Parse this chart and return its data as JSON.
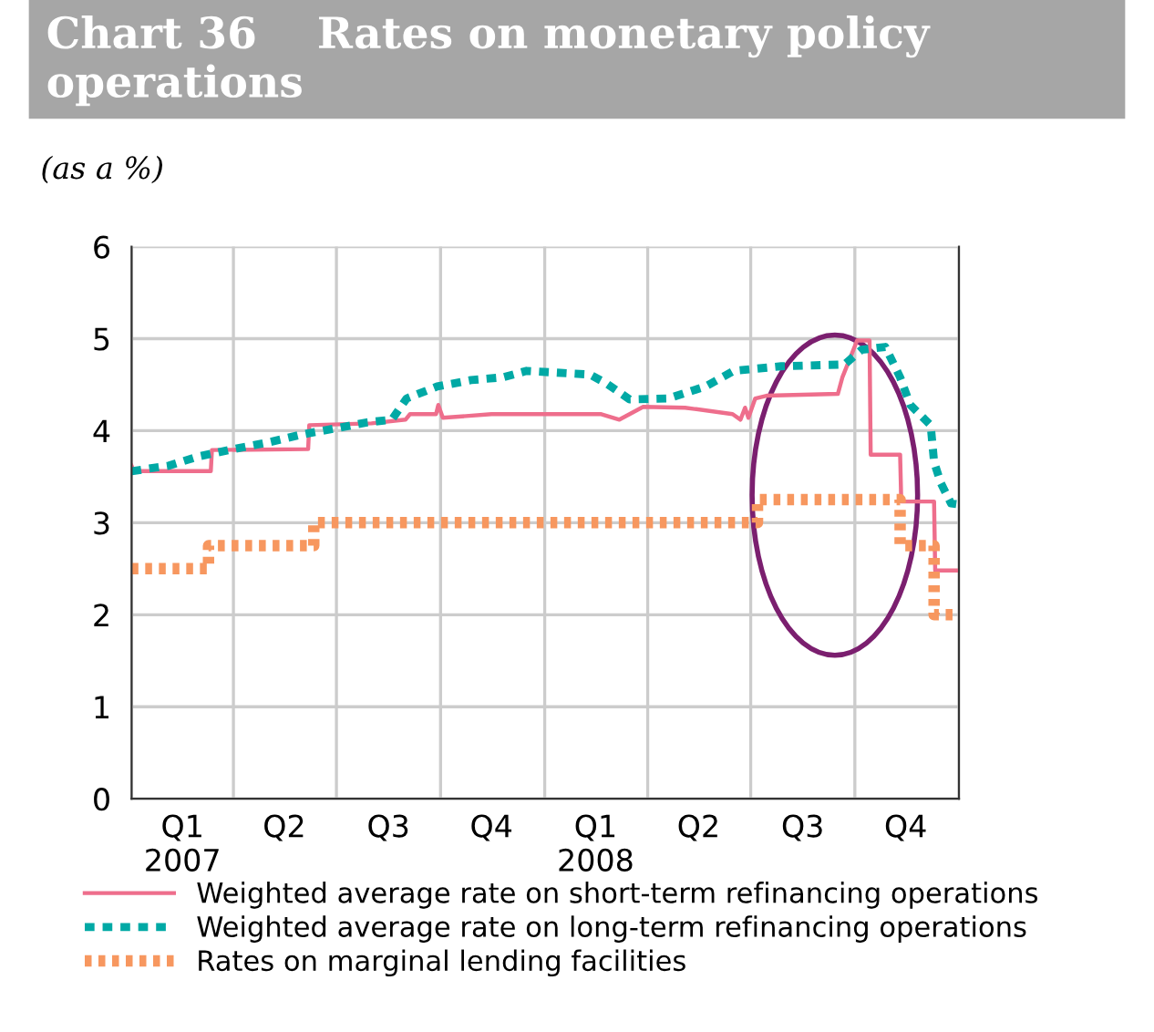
{
  "chart_data": {
    "type": "line",
    "title": "Chart 36    Rates on monetary policy operations",
    "subtitle": "(as a %)",
    "xlim": [
      "2007-01-01",
      "2009-01-01"
    ],
    "xticks": [
      {
        "value": "2007-01-01",
        "label": null
      },
      {
        "value": "2007-02-15",
        "label": "Q1\n2007"
      },
      {
        "value": "2007-04-01",
        "label": null
      },
      {
        "value": "2007-05-16",
        "label": "Q2"
      },
      {
        "value": "2007-07-01",
        "label": null
      },
      {
        "value": "2007-08-16",
        "label": "Q3"
      },
      {
        "value": "2007-10-01",
        "label": null
      },
      {
        "value": "2007-11-15",
        "label": "Q4"
      },
      {
        "value": "2008-01-01",
        "label": null
      },
      {
        "value": "2008-02-15",
        "label": "Q1\n2008"
      },
      {
        "value": "2008-04-01",
        "label": null
      },
      {
        "value": "2008-05-16",
        "label": "Q2"
      },
      {
        "value": "2008-07-01",
        "label": null
      },
      {
        "value": "2008-08-16",
        "label": "Q3"
      },
      {
        "value": "2008-10-01",
        "label": null
      },
      {
        "value": "2008-11-15",
        "label": "Q4"
      },
      {
        "value": "2009-01-01",
        "label": null
      }
    ],
    "ylim": [
      0,
      6
    ],
    "yticks": [
      0,
      1,
      2,
      3,
      4,
      5,
      6
    ],
    "grid": true,
    "legend": "bottom",
    "marker": "none",
    "series": [
      {
        "name": "Weighted average rate on short-term refinancing operations",
        "color": "#ee6e8c",
        "line_style": "solid",
        "x": [
          "2007-01-01",
          "2007-01-03",
          "2007-03-12",
          "2007-03-13",
          "2007-06-06",
          "2007-06-07",
          "2007-08-01",
          "2007-08-31",
          "2007-09-04",
          "2007-09-27",
          "2007-09-29",
          "2007-10-03",
          "2007-11-15",
          "2008-01-01",
          "2008-02-20",
          "2008-03-07",
          "2008-03-28",
          "2008-05-04",
          "2008-06-15",
          "2008-06-22",
          "2008-06-26",
          "2008-06-29",
          "2008-07-05",
          "2008-07-15",
          "2008-09-16",
          "2008-09-20",
          "2008-10-03",
          "2008-10-14",
          "2008-10-15",
          "2008-11-10",
          "2008-11-11",
          "2008-12-10",
          "2008-12-11",
          "2008-12-31"
        ],
        "values": [
          3.62,
          3.56,
          3.56,
          3.79,
          3.8,
          4.06,
          4.08,
          4.12,
          4.18,
          4.18,
          4.28,
          4.14,
          4.18,
          4.18,
          4.18,
          4.12,
          4.26,
          4.25,
          4.18,
          4.12,
          4.25,
          4.14,
          4.35,
          4.38,
          4.4,
          4.58,
          4.98,
          4.98,
          3.74,
          3.74,
          3.23,
          3.23,
          2.48,
          2.48
        ]
      },
      {
        "name": "Weighted average rate on long-term refinancing operations",
        "color": "#00a9a5",
        "line_style": "dashed",
        "x": [
          "2007-01-01",
          "2007-02-03",
          "2007-03-01",
          "2007-03-28",
          "2007-05-01",
          "2007-06-01",
          "2007-06-28",
          "2007-07-28",
          "2007-08-19",
          "2007-09-01",
          "2007-09-28",
          "2007-10-28",
          "2007-11-25",
          "2007-12-16",
          "2008-02-10",
          "2008-02-25",
          "2008-03-16",
          "2008-04-19",
          "2008-05-22",
          "2008-06-16",
          "2008-07-28",
          "2008-09-22",
          "2008-10-07",
          "2008-10-28",
          "2008-11-10",
          "2008-11-19",
          "2008-12-07",
          "2008-12-10",
          "2008-12-16",
          "2008-12-25",
          "2008-12-31"
        ],
        "values": [
          3.56,
          3.62,
          3.72,
          3.79,
          3.87,
          3.96,
          4.02,
          4.09,
          4.12,
          4.35,
          4.48,
          4.55,
          4.58,
          4.65,
          4.61,
          4.51,
          4.34,
          4.35,
          4.48,
          4.65,
          4.7,
          4.72,
          4.88,
          4.91,
          4.58,
          4.28,
          4.06,
          3.66,
          3.43,
          3.21,
          3.2
        ]
      },
      {
        "name": "Rates on marginal lending facilities",
        "color": "#f7975f",
        "line_style": "dotted",
        "type": "step",
        "x": [
          "2007-01-01",
          "2007-03-10",
          "2007-06-11",
          "2008-07-07",
          "2008-11-10",
          "2008-12-10",
          "2008-12-31"
        ],
        "values": [
          2.5,
          2.75,
          3.0,
          3.25,
          2.75,
          2.0,
          2.0
        ]
      }
    ]
  }
}
